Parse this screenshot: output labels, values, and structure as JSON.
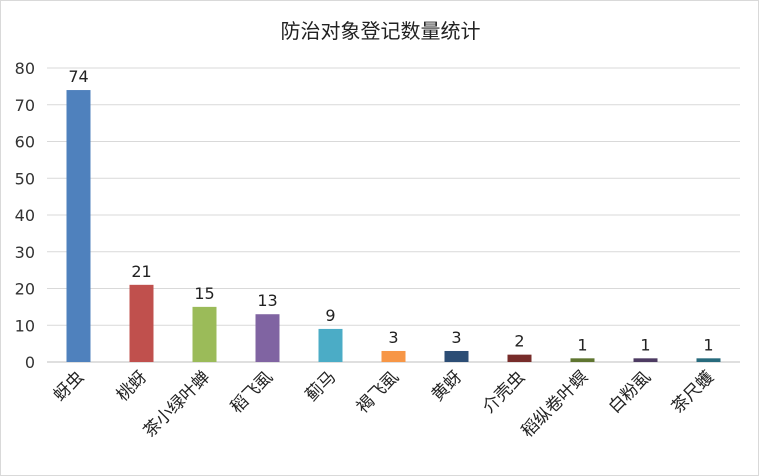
{
  "chart_data": {
    "type": "bar",
    "title": "防治对象登记数量统计",
    "xlabel": "",
    "ylabel": "",
    "ylim": [
      0,
      80
    ],
    "yticks": [
      0,
      10,
      20,
      30,
      40,
      50,
      60,
      70,
      80
    ],
    "grid": true,
    "legend": "none",
    "categories": [
      "蚜虫",
      "桃蚜",
      "茶小绿叶蝉",
      "稻飞虱",
      "蓟马",
      "褐飞虱",
      "黄蚜",
      "介壳虫",
      "稻纵卷叶螟",
      "白粉虱",
      "茶尺蠖"
    ],
    "values": [
      74,
      21,
      15,
      13,
      9,
      3,
      3,
      2,
      1,
      1,
      1
    ],
    "colors": [
      "#4f81bd",
      "#c0504d",
      "#9bbb59",
      "#8064a2",
      "#4bacc6",
      "#f79646",
      "#2c4d75",
      "#772c2a",
      "#5f7530",
      "#4d3b62",
      "#276a7c"
    ]
  }
}
